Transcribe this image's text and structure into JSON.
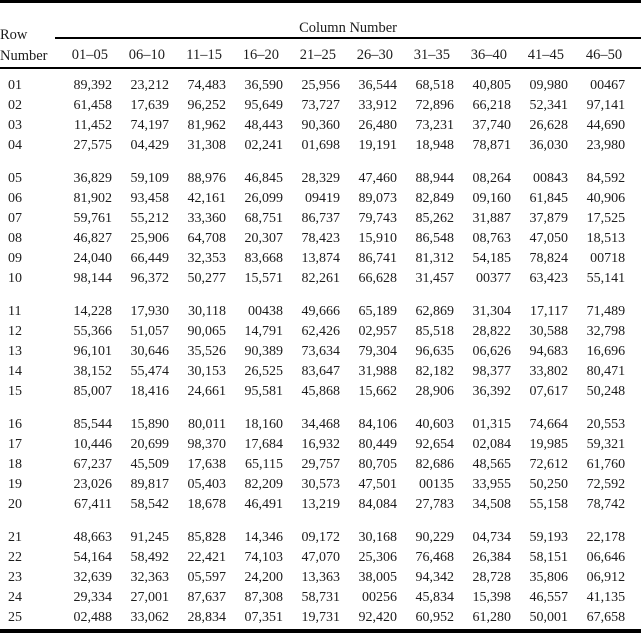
{
  "colors": {
    "background": "#ffffff",
    "text": "#1c1c1c",
    "rule": "#000000"
  },
  "table": {
    "title": "Column Number",
    "row_header": {
      "line1": "Row",
      "line2": "Number"
    },
    "column_headers": [
      "01–05",
      "06–10",
      "11–15",
      "16–20",
      "21–25",
      "26–30",
      "31–35",
      "36–40",
      "41–45",
      "46–50"
    ],
    "group_breaks_after": [
      "04",
      "10",
      "15",
      "20"
    ],
    "rows": [
      {
        "row_number": "01",
        "values": [
          "89,392",
          "23,212",
          "74,483",
          "36,590",
          "25,956",
          "36,544",
          "68,518",
          "40,805",
          "09,980",
          "00467"
        ]
      },
      {
        "row_number": "02",
        "values": [
          "61,458",
          "17,639",
          "96,252",
          "95,649",
          "73,727",
          "33,912",
          "72,896",
          "66,218",
          "52,341",
          "97,141"
        ]
      },
      {
        "row_number": "03",
        "values": [
          "11,452",
          "74,197",
          "81,962",
          "48,443",
          "90,360",
          "26,480",
          "73,231",
          "37,740",
          "26,628",
          "44,690"
        ]
      },
      {
        "row_number": "04",
        "values": [
          "27,575",
          "04,429",
          "31,308",
          "02,241",
          "01,698",
          "19,191",
          "18,948",
          "78,871",
          "36,030",
          "23,980"
        ]
      },
      {
        "row_number": "05",
        "values": [
          "36,829",
          "59,109",
          "88,976",
          "46,845",
          "28,329",
          "47,460",
          "88,944",
          "08,264",
          "00843",
          "84,592"
        ]
      },
      {
        "row_number": "06",
        "values": [
          "81,902",
          "93,458",
          "42,161",
          "26,099",
          "09419",
          "89,073",
          "82,849",
          "09,160",
          "61,845",
          "40,906"
        ]
      },
      {
        "row_number": "07",
        "values": [
          "59,761",
          "55,212",
          "33,360",
          "68,751",
          "86,737",
          "79,743",
          "85,262",
          "31,887",
          "37,879",
          "17,525"
        ]
      },
      {
        "row_number": "08",
        "values": [
          "46,827",
          "25,906",
          "64,708",
          "20,307",
          "78,423",
          "15,910",
          "86,548",
          "08,763",
          "47,050",
          "18,513"
        ]
      },
      {
        "row_number": "09",
        "values": [
          "24,040",
          "66,449",
          "32,353",
          "83,668",
          "13,874",
          "86,741",
          "81,312",
          "54,185",
          "78,824",
          "00718"
        ]
      },
      {
        "row_number": "10",
        "values": [
          "98,144",
          "96,372",
          "50,277",
          "15,571",
          "82,261",
          "66,628",
          "31,457",
          "00377",
          "63,423",
          "55,141"
        ]
      },
      {
        "row_number": "11",
        "values": [
          "14,228",
          "17,930",
          "30,118",
          "00438",
          "49,666",
          "65,189",
          "62,869",
          "31,304",
          "17,117",
          "71,489"
        ]
      },
      {
        "row_number": "12",
        "values": [
          "55,366",
          "51,057",
          "90,065",
          "14,791",
          "62,426",
          "02,957",
          "85,518",
          "28,822",
          "30,588",
          "32,798"
        ]
      },
      {
        "row_number": "13",
        "values": [
          "96,101",
          "30,646",
          "35,526",
          "90,389",
          "73,634",
          "79,304",
          "96,635",
          "06,626",
          "94,683",
          "16,696"
        ]
      },
      {
        "row_number": "14",
        "values": [
          "38,152",
          "55,474",
          "30,153",
          "26,525",
          "83,647",
          "31,988",
          "82,182",
          "98,377",
          "33,802",
          "80,471"
        ]
      },
      {
        "row_number": "15",
        "values": [
          "85,007",
          "18,416",
          "24,661",
          "95,581",
          "45,868",
          "15,662",
          "28,906",
          "36,392",
          "07,617",
          "50,248"
        ]
      },
      {
        "row_number": "16",
        "values": [
          "85,544",
          "15,890",
          "80,011",
          "18,160",
          "34,468",
          "84,106",
          "40,603",
          "01,315",
          "74,664",
          "20,553"
        ]
      },
      {
        "row_number": "17",
        "values": [
          "10,446",
          "20,699",
          "98,370",
          "17,684",
          "16,932",
          "80,449",
          "92,654",
          "02,084",
          "19,985",
          "59,321"
        ]
      },
      {
        "row_number": "18",
        "values": [
          "67,237",
          "45,509",
          "17,638",
          "65,115",
          "29,757",
          "80,705",
          "82,686",
          "48,565",
          "72,612",
          "61,760"
        ]
      },
      {
        "row_number": "19",
        "values": [
          "23,026",
          "89,817",
          "05,403",
          "82,209",
          "30,573",
          "47,501",
          "00135",
          "33,955",
          "50,250",
          "72,592"
        ]
      },
      {
        "row_number": "20",
        "values": [
          "67,411",
          "58,542",
          "18,678",
          "46,491",
          "13,219",
          "84,084",
          "27,783",
          "34,508",
          "55,158",
          "78,742"
        ]
      },
      {
        "row_number": "21",
        "values": [
          "48,663",
          "91,245",
          "85,828",
          "14,346",
          "09,172",
          "30,168",
          "90,229",
          "04,734",
          "59,193",
          "22,178"
        ]
      },
      {
        "row_number": "22",
        "values": [
          "54,164",
          "58,492",
          "22,421",
          "74,103",
          "47,070",
          "25,306",
          "76,468",
          "26,384",
          "58,151",
          "06,646"
        ]
      },
      {
        "row_number": "23",
        "values": [
          "32,639",
          "32,363",
          "05,597",
          "24,200",
          "13,363",
          "38,005",
          "94,342",
          "28,728",
          "35,806",
          "06,912"
        ]
      },
      {
        "row_number": "24",
        "values": [
          "29,334",
          "27,001",
          "87,637",
          "87,308",
          "58,731",
          "00256",
          "45,834",
          "15,398",
          "46,557",
          "41,135"
        ]
      },
      {
        "row_number": "25",
        "values": [
          "02,488",
          "33,062",
          "28,834",
          "07,351",
          "19,731",
          "92,420",
          "60,952",
          "61,280",
          "50,001",
          "67,658"
        ]
      }
    ]
  }
}
